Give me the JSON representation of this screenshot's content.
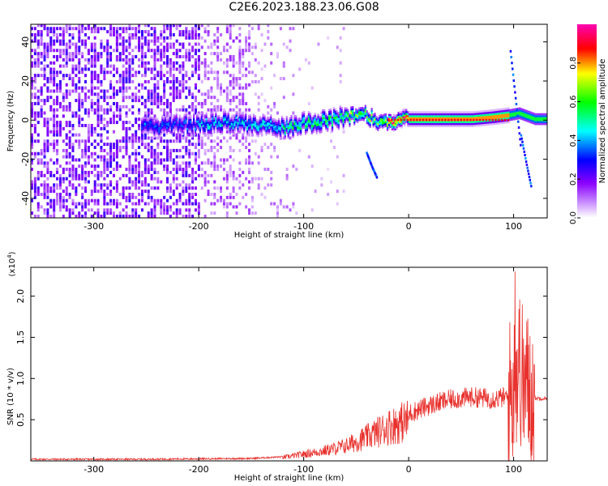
{
  "title": "C2E6.2023.188.23.06.G08",
  "chart_data": [
    {
      "type": "heatmap",
      "xlabel": "Height of straight line (km)",
      "ylabel": "Frequency (Hz)",
      "xlim": [
        -360,
        132
      ],
      "ylim": [
        -50,
        49
      ],
      "xticks": [
        -300,
        -200,
        -100,
        0,
        100
      ],
      "yticks": [
        -40,
        -20,
        0,
        20,
        40
      ],
      "colorbar": {
        "label": "Normalized spectral amplitude",
        "ticks": [
          0.0,
          0.2,
          0.4,
          0.6,
          0.8
        ],
        "range": [
          0,
          1
        ],
        "colors": [
          "#ffffff",
          "#8a00ff",
          "#0000ff",
          "#00ffff",
          "#00ff00",
          "#ffff00",
          "#ff0000",
          "#ff00aa"
        ]
      },
      "ridge": {
        "x": [
          -250,
          -220,
          -200,
          -180,
          -160,
          -140,
          -120,
          -100,
          -80,
          -60,
          -45,
          -35,
          -25,
          -10,
          0,
          20,
          40,
          60,
          80,
          95,
          105,
          120,
          132
        ],
        "freq": [
          -4,
          -3,
          -3,
          -2,
          -2,
          -3,
          -4,
          -2,
          -1,
          1,
          3,
          0,
          -2,
          0,
          0,
          0,
          0,
          0,
          1,
          2,
          3,
          0,
          0
        ]
      },
      "secondary_tracks": [
        {
          "x": [
            97,
            102,
            107
          ],
          "freq": [
            35,
            10,
            -15
          ]
        },
        {
          "x": [
            107,
            112,
            117
          ],
          "freq": [
            -8,
            -22,
            -35
          ]
        },
        {
          "x": [
            -40,
            -35,
            -30
          ],
          "freq": [
            -17,
            -24,
            -30
          ]
        }
      ]
    },
    {
      "type": "line",
      "xlabel": "Height of straight line (km)",
      "ylabel": "SNR (10 * v/v)",
      "scale_label": "(x10^4)",
      "xlim": [
        -360,
        132
      ],
      "ylim": [
        0,
        2.35
      ],
      "xticks": [
        -300,
        -200,
        -100,
        0,
        100
      ],
      "yticks": [
        0.5,
        1.0,
        1.5,
        2.0
      ],
      "color": "#e8302c",
      "envelope": {
        "x": [
          -360,
          -250,
          -150,
          -120,
          -100,
          -80,
          -60,
          -40,
          -20,
          0,
          20,
          40,
          60,
          80,
          95,
          100,
          105,
          110,
          115,
          120,
          132
        ],
        "y": [
          0.02,
          0.02,
          0.03,
          0.05,
          0.1,
          0.15,
          0.22,
          0.35,
          0.5,
          0.6,
          0.7,
          0.77,
          0.8,
          0.78,
          0.8,
          0.85,
          1.2,
          0.9,
          0.9,
          0.76,
          0.76
        ]
      }
    }
  ]
}
